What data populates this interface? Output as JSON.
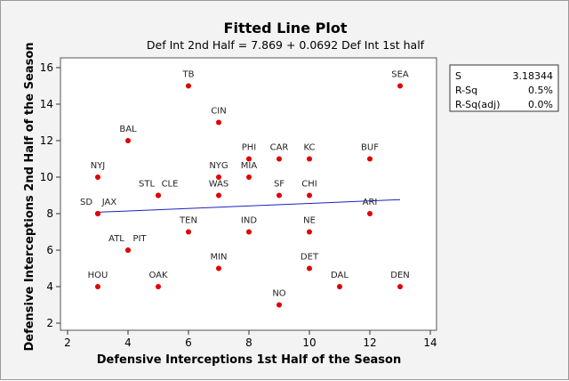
{
  "chart_data": {
    "type": "scatter",
    "title": "Fitted Line Plot",
    "subtitle": "Def Int 2nd Half =  7.869 + 0.0692 Def Int 1st half",
    "xlabel": "Defensive Interceptions 1st Half of the Season",
    "ylabel": "Defensive Interceptions 2nd Half of the Season",
    "xlim": [
      2,
      14
    ],
    "ylim": [
      2,
      16
    ],
    "xticks": [
      2,
      4,
      6,
      8,
      10,
      12,
      14
    ],
    "yticks": [
      2,
      4,
      6,
      8,
      10,
      12,
      14,
      16
    ],
    "fit": {
      "intercept": 7.869,
      "slope": 0.0692,
      "x_range": [
        3,
        13
      ]
    },
    "points": [
      {
        "label": "TB",
        "x": 6,
        "y": 15
      },
      {
        "label": "SEA",
        "x": 13,
        "y": 15
      },
      {
        "label": "CIN",
        "x": 7,
        "y": 13
      },
      {
        "label": "BAL",
        "x": 4,
        "y": 12
      },
      {
        "label": "PHI",
        "x": 8,
        "y": 11
      },
      {
        "label": "CAR",
        "x": 9,
        "y": 11
      },
      {
        "label": "KC",
        "x": 10,
        "y": 11
      },
      {
        "label": "BUF",
        "x": 12,
        "y": 11
      },
      {
        "label": "NYJ",
        "x": 3,
        "y": 10
      },
      {
        "label": "NYG",
        "x": 7,
        "y": 10
      },
      {
        "label": "MIA",
        "x": 8,
        "y": 10
      },
      {
        "label": "STL",
        "x": 5,
        "y": 9
      },
      {
        "label": "CLE",
        "x": 5,
        "y": 9
      },
      {
        "label": "WAS",
        "x": 7,
        "y": 9
      },
      {
        "label": "SF",
        "x": 9,
        "y": 9
      },
      {
        "label": "CHI",
        "x": 10,
        "y": 9
      },
      {
        "label": "SD",
        "x": 3,
        "y": 8
      },
      {
        "label": "JAX",
        "x": 3,
        "y": 8
      },
      {
        "label": "ARI",
        "x": 12,
        "y": 8
      },
      {
        "label": "TEN",
        "x": 6,
        "y": 7
      },
      {
        "label": "IND",
        "x": 8,
        "y": 7
      },
      {
        "label": "NE",
        "x": 10,
        "y": 7
      },
      {
        "label": "ATL",
        "x": 4,
        "y": 6
      },
      {
        "label": "PIT",
        "x": 4,
        "y": 6
      },
      {
        "label": "MIN",
        "x": 7,
        "y": 5
      },
      {
        "label": "DET",
        "x": 10,
        "y": 5
      },
      {
        "label": "HOU",
        "x": 3,
        "y": 4
      },
      {
        "label": "OAK",
        "x": 5,
        "y": 4
      },
      {
        "label": "DAL",
        "x": 11,
        "y": 4
      },
      {
        "label": "DEN",
        "x": 13,
        "y": 4
      },
      {
        "label": "NO",
        "x": 9,
        "y": 3
      }
    ],
    "stats": [
      {
        "name": "S",
        "value": "3.18344"
      },
      {
        "name": "R-Sq",
        "value": "0.5%"
      },
      {
        "name": "R-Sq(adj)",
        "value": "0.0%"
      }
    ],
    "colors": {
      "point": "#e00000",
      "line": "#2020c0"
    }
  }
}
